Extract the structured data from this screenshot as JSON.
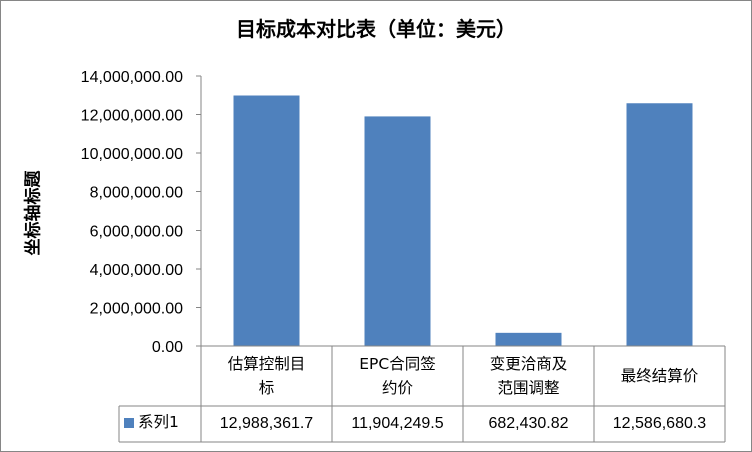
{
  "chart_data": {
    "type": "bar",
    "title": "目标成本对比表（单位：美元）",
    "ylabel": "坐标轴标题",
    "xlabel": "",
    "categories": [
      "估算控制目标",
      "EPC合同签约价",
      "变更洽商及范围调整",
      "最终结算价"
    ],
    "category_label_lines": [
      [
        "估算控制目",
        "标"
      ],
      [
        "EPC合同签",
        "约价"
      ],
      [
        "变更洽商及",
        "范围调整"
      ],
      [
        "最终结算价"
      ]
    ],
    "series": [
      {
        "name": "系列1",
        "values": [
          12988361.7,
          11904249.5,
          682430.82,
          12586680.3
        ],
        "display_values": [
          "12,988,361.7",
          "11,904,249.5",
          "682,430.82",
          "12,586,680.3"
        ],
        "color": "#4f81bd"
      }
    ],
    "ylim": [
      0,
      14000000
    ],
    "yticks": [
      0,
      2000000,
      4000000,
      6000000,
      8000000,
      10000000,
      12000000,
      14000000
    ],
    "ytick_labels": [
      "0.00",
      "2,000,000.00",
      "4,000,000.00",
      "6,000,000.00",
      "8,000,000.00",
      "10,000,000.00",
      "12,000,000.00",
      "14,000,000.00"
    ],
    "grid": false,
    "data_table": true,
    "legend": "data-table"
  }
}
